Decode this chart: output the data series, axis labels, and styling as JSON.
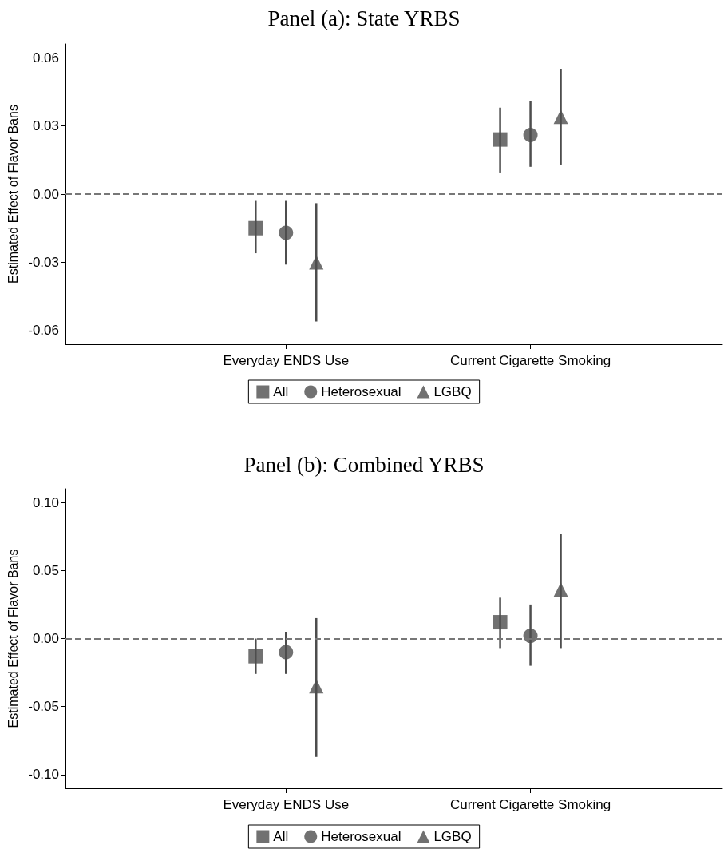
{
  "chart_data": [
    {
      "type": "scatter",
      "title": "Panel (a): State YRBS",
      "ylabel": "Estimated Effect of Flavor Bans",
      "categories": [
        "Everyday ENDS Use",
        "Current Cigarette Smoking"
      ],
      "ylim": [
        -0.066,
        0.066
      ],
      "yticks": [
        {
          "value": 0.06,
          "label": "0.06"
        },
        {
          "value": 0.03,
          "label": "0.03"
        },
        {
          "value": 0,
          "label": "0.00"
        },
        {
          "value": -0.03,
          "label": "-0.03"
        },
        {
          "value": -0.06,
          "label": "-0.06"
        }
      ],
      "grid": false,
      "legend": "bottom",
      "ref_lines": [
        {
          "axis": "y",
          "value": 0,
          "line_style": "dashed",
          "color": "#777777"
        }
      ],
      "series": [
        {
          "name": "All",
          "color": "#4d4d4d",
          "marker": "square",
          "values": [
            -0.015,
            0.024
          ],
          "errors": [
            [
              -0.026,
              -0.003
            ],
            [
              0.0095,
              0.038
            ]
          ]
        },
        {
          "name": "Heterosexual",
          "color": "#4d4d4d",
          "marker": "circle",
          "values": [
            -0.017,
            0.026
          ],
          "errors": [
            [
              -0.031,
              -0.003
            ],
            [
              0.012,
              0.041
            ]
          ]
        },
        {
          "name": "LGBQ",
          "color": "#4d4d4d",
          "marker": "triangle",
          "values": [
            -0.03,
            0.034
          ],
          "errors": [
            [
              -0.056,
              -0.004
            ],
            [
              0.013,
              0.055
            ]
          ]
        }
      ]
    },
    {
      "type": "scatter",
      "title": "Panel (b): Combined YRBS",
      "ylabel": "Estimated Effect of Flavor Bans",
      "categories": [
        "Everyday ENDS Use",
        "Current Cigarette Smoking"
      ],
      "ylim": [
        -0.11,
        0.11
      ],
      "yticks": [
        {
          "value": 0.1,
          "label": "0.10"
        },
        {
          "value": 0.05,
          "label": "0.05"
        },
        {
          "value": 0,
          "label": "0.00"
        },
        {
          "value": -0.05,
          "label": "-0.05"
        },
        {
          "value": -0.1,
          "label": "-0.10"
        }
      ],
      "grid": false,
      "legend": "bottom",
      "ref_lines": [
        {
          "axis": "y",
          "value": 0,
          "line_style": "dashed",
          "color": "#777777"
        }
      ],
      "series": [
        {
          "name": "All",
          "color": "#4d4d4d",
          "marker": "square",
          "values": [
            -0.013,
            0.012
          ],
          "errors": [
            [
              -0.026,
              0
            ],
            [
              -0.007,
              0.03
            ]
          ]
        },
        {
          "name": "Heterosexual",
          "color": "#4d4d4d",
          "marker": "circle",
          "values": [
            -0.01,
            0.002
          ],
          "errors": [
            [
              -0.026,
              0.005
            ],
            [
              -0.02,
              0.025
            ]
          ]
        },
        {
          "name": "LGBQ",
          "color": "#4d4d4d",
          "marker": "triangle",
          "values": [
            -0.035,
            0.036
          ],
          "errors": [
            [
              -0.087,
              0.015
            ],
            [
              -0.007,
              0.077
            ]
          ]
        }
      ]
    }
  ]
}
